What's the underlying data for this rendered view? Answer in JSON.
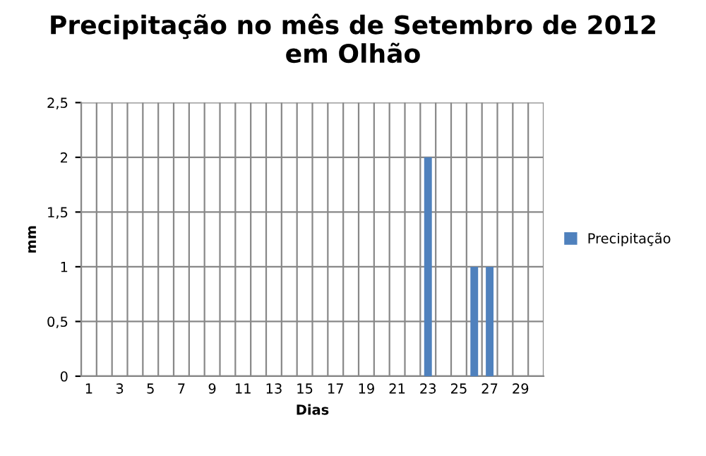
{
  "chart_data": {
    "type": "bar",
    "title": "Precipitação no mês de Setembro de 2012\nem Olhão",
    "xlabel": "Dias",
    "ylabel": "mm",
    "categories": [
      "1",
      null,
      "3",
      null,
      "5",
      null,
      "7",
      null,
      "9",
      null,
      "11",
      null,
      "13",
      null,
      "15",
      null,
      "17",
      null,
      "19",
      null,
      "21",
      null,
      "23",
      null,
      "25",
      null,
      "27",
      null,
      "29",
      null
    ],
    "series": [
      {
        "name": "Precipitação",
        "color": "#4f81bd",
        "values": [
          0,
          0,
          0,
          0,
          0,
          0,
          0,
          0,
          0,
          0,
          0,
          0,
          0,
          0,
          0,
          0,
          0,
          0,
          0,
          0,
          0,
          0,
          2,
          0,
          0,
          1,
          1,
          0,
          0,
          0
        ]
      }
    ],
    "ylim": [
      0,
      2.5
    ],
    "yticks": [
      0,
      {
        "value": 0.5,
        "label": "0,5"
      },
      1,
      {
        "value": 1.5,
        "label": "1,5"
      },
      2,
      {
        "value": 2.5,
        "label": "2,5"
      }
    ],
    "grid": true,
    "legend": "right"
  }
}
